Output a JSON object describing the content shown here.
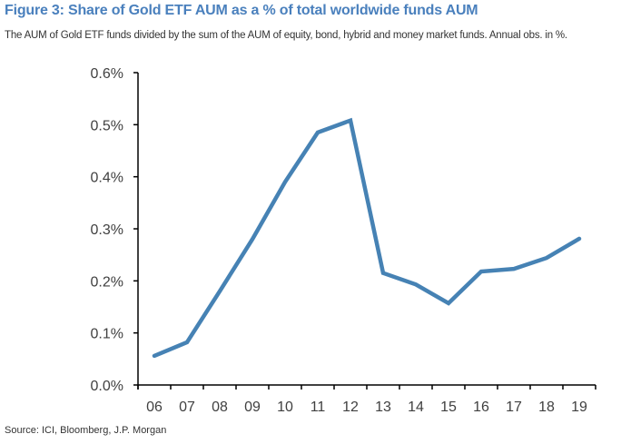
{
  "header": {
    "title": "Figure 3: Share of Gold ETF AUM as a % of total worldwide funds AUM",
    "subtitle": "The AUM of Gold ETF funds divided by the sum of the AUM of equity, bond, hybrid and money market funds. Annual obs. in %."
  },
  "footer": {
    "source": "Source: ICI, Bloomberg, J.P. Morgan"
  },
  "chart_data": {
    "type": "line",
    "title": "Figure 3: Share of Gold ETF AUM as a % of total worldwide funds AUM",
    "subtitle": "The AUM of Gold ETF funds divided by the sum of the AUM of equity, bond, hybrid and money market funds. Annual obs. in %.",
    "xlabel": "",
    "ylabel": "",
    "categories": [
      "06",
      "07",
      "08",
      "09",
      "10",
      "11",
      "12",
      "13",
      "14",
      "15",
      "16",
      "17",
      "18",
      "19"
    ],
    "series": [
      {
        "name": "Gold ETF AUM share",
        "color": "#4682b4",
        "values": [
          0.056,
          0.082,
          0.18,
          0.28,
          0.39,
          0.485,
          0.508,
          0.215,
          0.193,
          0.157,
          0.218,
          0.223,
          0.244,
          0.281
        ]
      }
    ],
    "ylim": [
      0,
      0.6
    ],
    "yticks": [
      0,
      0.1,
      0.2,
      0.3,
      0.4,
      0.5,
      0.6
    ],
    "ytick_labels": [
      "0.0%",
      "0.1%",
      "0.2%",
      "0.3%",
      "0.4%",
      "0.5%",
      "0.6%"
    ],
    "grid": false,
    "legend": "none"
  }
}
